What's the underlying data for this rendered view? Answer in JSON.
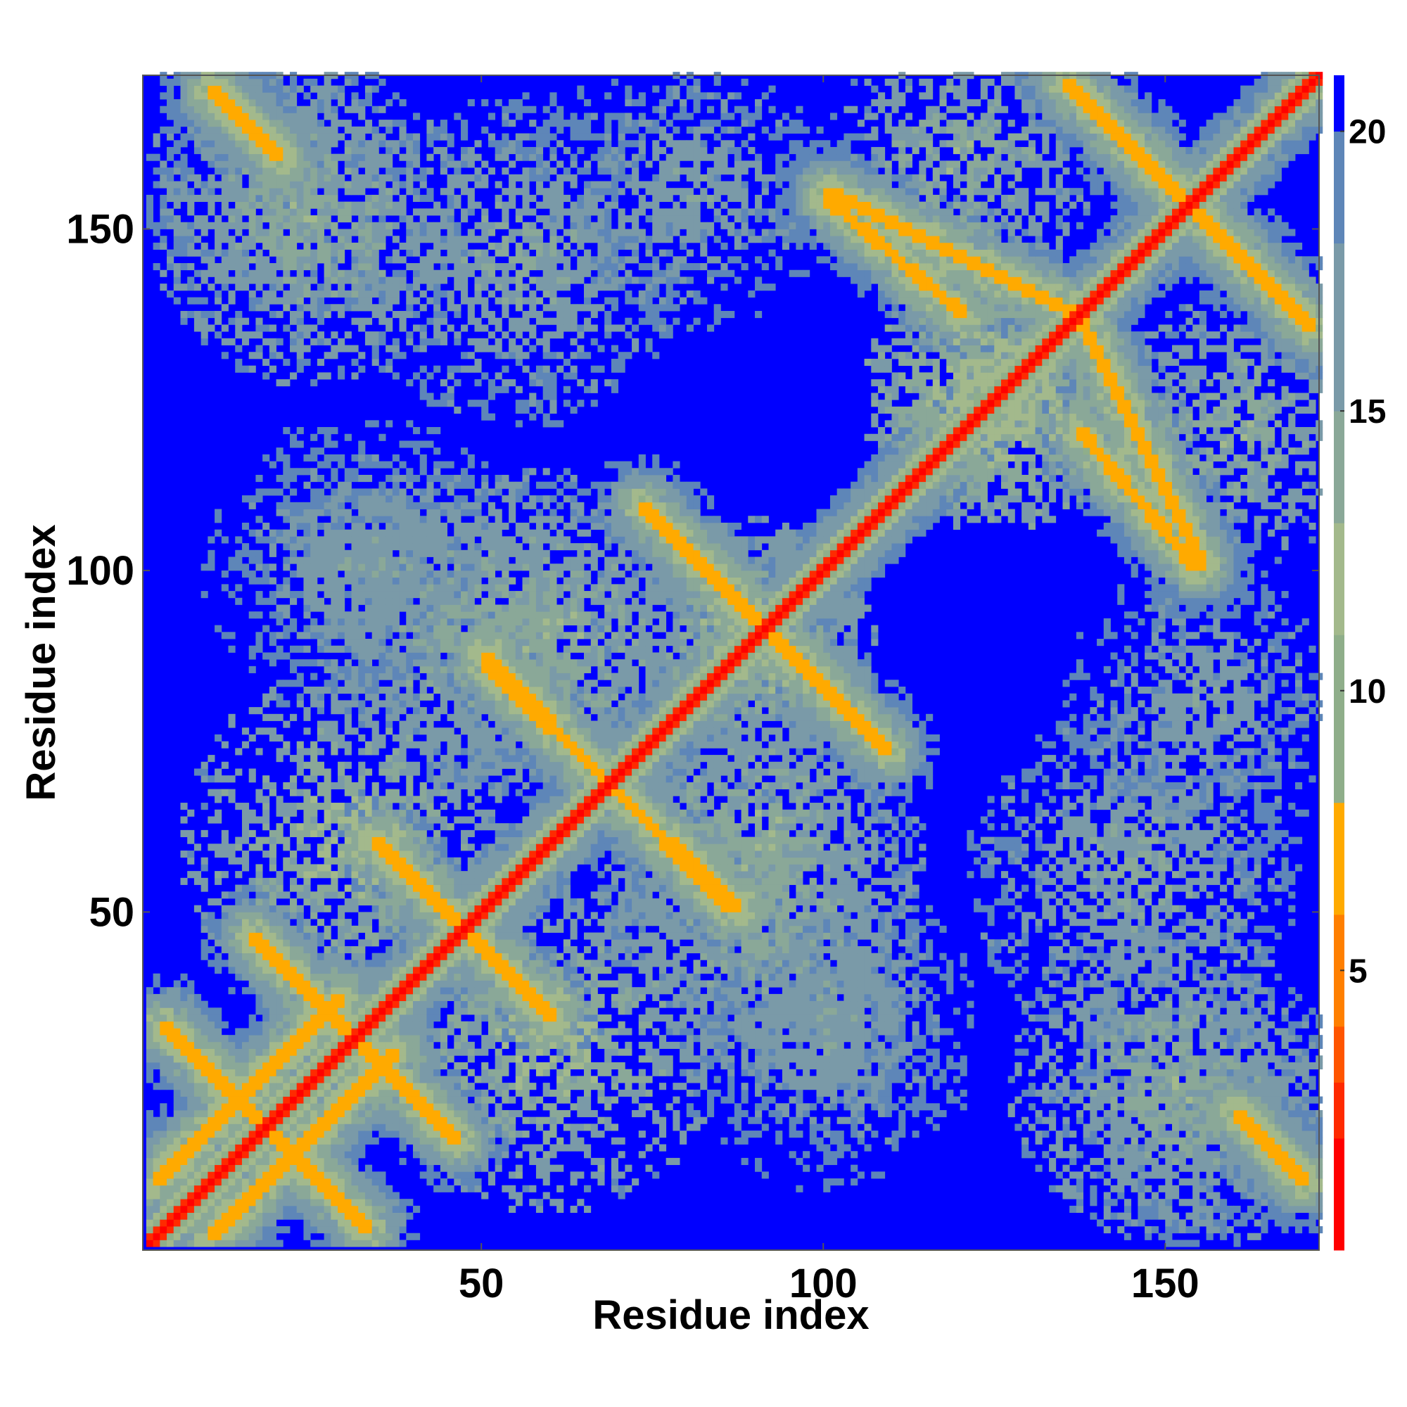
{
  "chart_data": {
    "type": "heatmap",
    "title": "",
    "xlabel": "Residue index",
    "ylabel": "Residue index",
    "xlim": [
      1,
      172
    ],
    "ylim": [
      1,
      172
    ],
    "x_ticks": [
      "50",
      "100",
      "150"
    ],
    "y_ticks": [
      "50",
      "100",
      "150"
    ],
    "colorbar": {
      "range": [
        0,
        21
      ],
      "ticks": [
        "5",
        "10",
        "15",
        "20"
      ],
      "colors": [
        "#ff0000",
        "#ff2a00",
        "#ff5500",
        "#ff7f00",
        "#ffaa00",
        "#8fae8a",
        "#a3b98c",
        "#8aa898",
        "#7a9aa8",
        "#5e86b8",
        "#0000ff"
      ],
      "bounds": [
        0,
        2,
        3,
        4,
        6,
        8,
        11,
        13,
        15,
        18,
        20,
        21
      ]
    },
    "grid": false,
    "diagonal": {
      "from": 1,
      "to": 172,
      "value": 0
    },
    "contact_bands": [
      {
        "from": [
          2,
          10
        ],
        "to": [
          29,
          37
        ],
        "value": 6
      },
      {
        "from": [
          5,
          31
        ],
        "to": [
          33,
          3
        ],
        "value": 6
      },
      {
        "from": [
          17,
          45
        ],
        "to": [
          46,
          16
        ],
        "value": 6
      },
      {
        "from": [
          34,
          60
        ],
        "to": [
          60,
          34
        ],
        "value": 6
      },
      {
        "from": [
          50,
          86
        ],
        "to": [
          87,
          50
        ],
        "value": 6
      },
      {
        "from": [
          73,
          109
        ],
        "to": [
          100,
          82
        ],
        "value": 6
      },
      {
        "from": [
          100,
          155
        ],
        "to": [
          137,
          137
        ],
        "value": 6
      },
      {
        "from": [
          137,
          120
        ],
        "to": [
          154,
          100
        ],
        "value": 6
      },
      {
        "from": [
          135,
          171
        ],
        "to": [
          171,
          135
        ],
        "value": 6
      },
      {
        "from": [
          160,
          20
        ],
        "to": [
          170,
          10
        ],
        "value": 6
      },
      {
        "from": [
          10,
          170
        ],
        "to": [
          20,
          160
        ],
        "value": 6
      }
    ],
    "halo_regions": [
      {
        "center": [
          20,
          155
        ],
        "radius": 22,
        "value": 16
      },
      {
        "center": [
          55,
          145
        ],
        "radius": 25,
        "value": 16
      },
      {
        "center": [
          35,
          100
        ],
        "radius": 22,
        "value": 17
      },
      {
        "center": [
          60,
          90
        ],
        "radius": 25,
        "value": 15
      },
      {
        "center": [
          88,
          90
        ],
        "radius": 18,
        "value": 14
      },
      {
        "center": [
          90,
          50
        ],
        "radius": 24,
        "value": 15
      },
      {
        "center": [
          30,
          60
        ],
        "radius": 25,
        "value": 14
      },
      {
        "center": [
          100,
          30
        ],
        "radius": 22,
        "value": 17
      },
      {
        "center": [
          150,
          25
        ],
        "radius": 24,
        "value": 15
      },
      {
        "center": [
          155,
          80
        ],
        "radius": 22,
        "value": 17
      },
      {
        "center": [
          160,
          120
        ],
        "radius": 20,
        "value": 15
      },
      {
        "center": [
          125,
          125
        ],
        "radius": 20,
        "value": 13
      }
    ]
  }
}
